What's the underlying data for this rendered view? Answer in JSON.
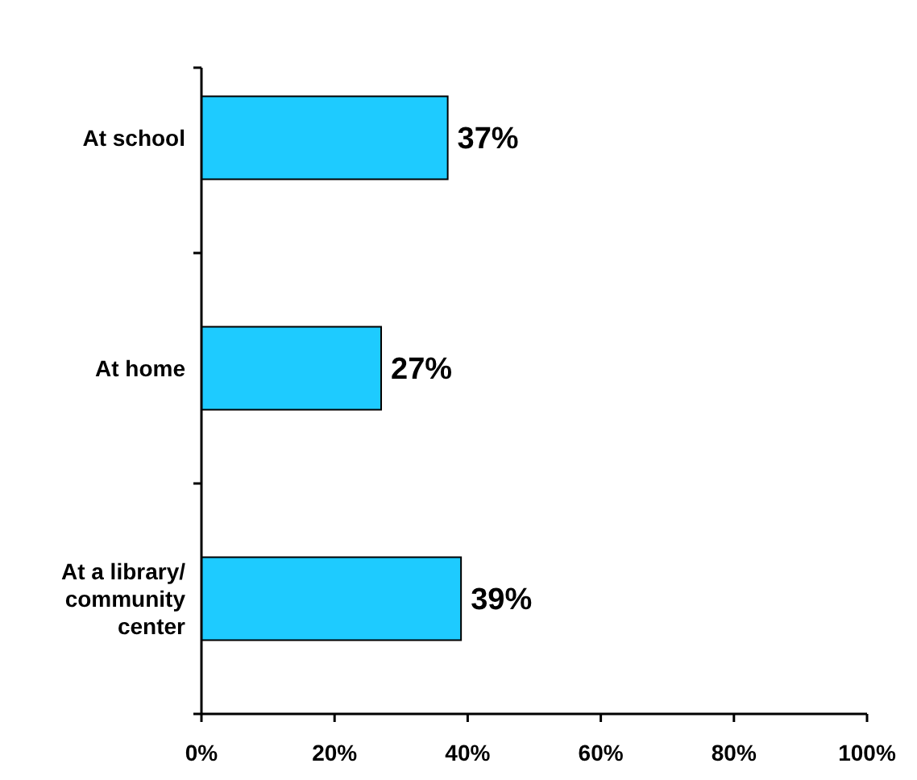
{
  "chart_data": {
    "type": "bar",
    "orientation": "horizontal",
    "categories": [
      "At school",
      "At home",
      "At a library/ community center"
    ],
    "values": [
      37,
      27,
      39
    ],
    "value_labels": [
      "37%",
      "27%",
      "39%"
    ],
    "color": "#1ecbff",
    "xlim": [
      0,
      100
    ],
    "xticks": [
      {
        "value": 0,
        "label": "0%"
      },
      {
        "value": 20,
        "label": "20%"
      },
      {
        "value": 40,
        "label": "40%"
      },
      {
        "value": 60,
        "label": "60%"
      },
      {
        "value": 80,
        "label": "80%"
      },
      {
        "value": 100,
        "label": "100%"
      }
    ],
    "grid": false
  }
}
